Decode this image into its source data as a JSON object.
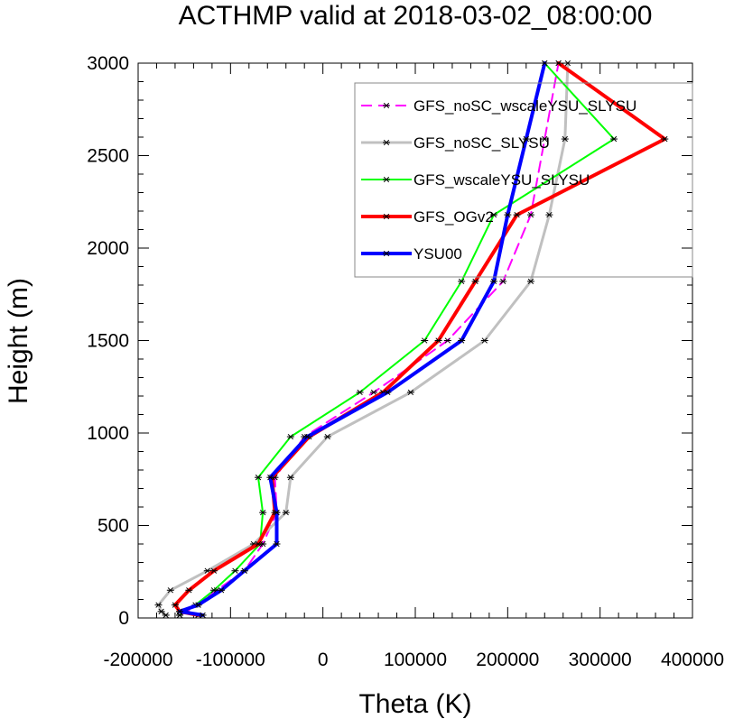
{
  "chart_data": {
    "type": "line",
    "title": "ACTHMP valid at 2018-03-02_08:00:00",
    "xlabel": "Theta (K)",
    "ylabel": "Height (m)",
    "xlim": [
      -200000,
      400000
    ],
    "ylim": [
      0,
      3000
    ],
    "xticks": [
      "-200000",
      "-100000",
      "0",
      "100000",
      "200000",
      "300000",
      "400000"
    ],
    "yticks": [
      "0",
      "500",
      "1000",
      "1500",
      "2000",
      "2500",
      "3000"
    ],
    "grid": false,
    "legend_position": "top-right",
    "heights": [
      15,
      35,
      70,
      150,
      255,
      400,
      570,
      760,
      980,
      1220,
      1500,
      1820,
      2180,
      2590,
      3000
    ],
    "series": [
      {
        "name": "GFS_noSC_wscaleYSU_SLYSU",
        "color": "#ff00ff",
        "dash": true,
        "width": 2,
        "x": [
          -155000,
          -148000,
          -135000,
          -115000,
          -85000,
          -65000,
          -50000,
          -52000,
          -20000,
          55000,
          135000,
          195000,
          225000,
          240000,
          255000
        ]
      },
      {
        "name": "GFS_noSC_SLYSU",
        "color": "#c0c0c0",
        "dash": false,
        "width": 3,
        "x": [
          -170000,
          -175000,
          -178000,
          -165000,
          -125000,
          -75000,
          -40000,
          -35000,
          5000,
          95000,
          175000,
          225000,
          245000,
          262000,
          265000
        ]
      },
      {
        "name": "GFS_wscaleYSU_SLYSU",
        "color": "#00ff00",
        "dash": false,
        "width": 2,
        "x": [
          -155000,
          -150000,
          -138000,
          -118000,
          -95000,
          -68000,
          -65000,
          -70000,
          -35000,
          40000,
          110000,
          150000,
          185000,
          315000,
          240000
        ]
      },
      {
        "name": "GFS_OGv2",
        "color": "#ff0000",
        "dash": false,
        "width": 4,
        "x": [
          -135000,
          -155000,
          -160000,
          -145000,
          -118000,
          -70000,
          -52000,
          -55000,
          -15000,
          65000,
          125000,
          165000,
          210000,
          370000,
          255000
        ]
      },
      {
        "name": "YSU00",
        "color": "#0000ff",
        "dash": false,
        "width": 4,
        "x": [
          -130000,
          -155000,
          -135000,
          -110000,
          -85000,
          -50000,
          -50000,
          -57000,
          -17000,
          70000,
          150000,
          185000,
          200000,
          220000,
          240000
        ]
      }
    ]
  }
}
